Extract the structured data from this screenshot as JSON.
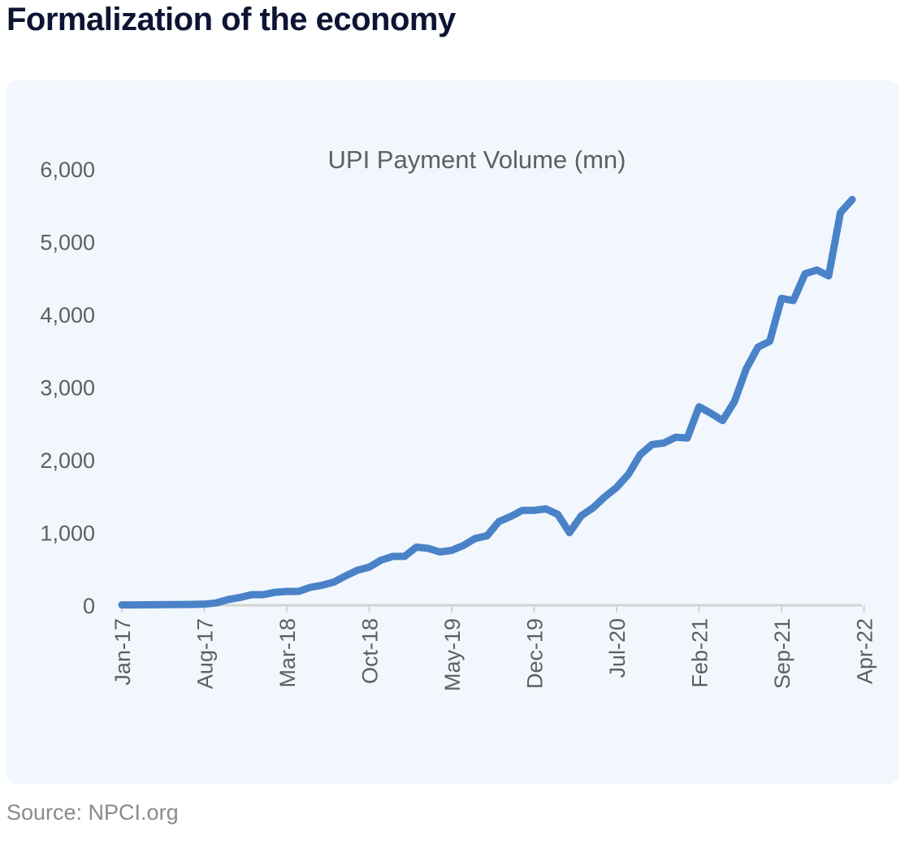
{
  "page": {
    "heading": "Formalization of the economy",
    "source": "Source: NPCI.org"
  },
  "colors": {
    "line": "#4a82c8",
    "axis": "#d3d3d3",
    "text": "#5f5f5f",
    "heading": "#0d1433",
    "card": "#f1f7fd"
  },
  "chart_data": {
    "type": "line",
    "title": "UPI Payment Volume (mn)",
    "xlabel": "",
    "ylabel": "",
    "ylim": [
      0,
      6000
    ],
    "yticks": [
      0,
      1000,
      2000,
      3000,
      4000,
      5000,
      6000
    ],
    "ytick_labels": [
      "0",
      "1,000",
      "2,000",
      "3,000",
      "4,000",
      "5,000",
      "6,000"
    ],
    "xtick_labels": [
      "Jan-17",
      "Aug-17",
      "Mar-18",
      "Oct-18",
      "May-19",
      "Dec-19",
      "Jul-20",
      "Feb-21",
      "Sep-21",
      "Apr-22"
    ],
    "x_start": "Jan-17",
    "x_end": "Apr-22",
    "grid": false,
    "legend": "none",
    "series": [
      {
        "values": [
          5,
          4,
          6,
          7,
          9,
          10,
          11,
          16,
          31,
          77,
          105,
          145,
          145,
          178,
          190,
          190,
          246,
          275,
          318,
          405,
          482,
          524,
          620,
          672,
          672,
          799,
          782,
          733,
          754,
          822,
          918,
          955,
          1150,
          1220,
          1305,
          1305,
          1325,
          1250,
          999,
          1230,
          1340,
          1490,
          1620,
          1800,
          2070,
          2210,
          2230,
          2310,
          2300,
          2730,
          2640,
          2540,
          2800,
          3250,
          3550,
          3630,
          4220,
          4190,
          4560,
          4610,
          4530,
          5400,
          5580
        ]
      }
    ]
  }
}
